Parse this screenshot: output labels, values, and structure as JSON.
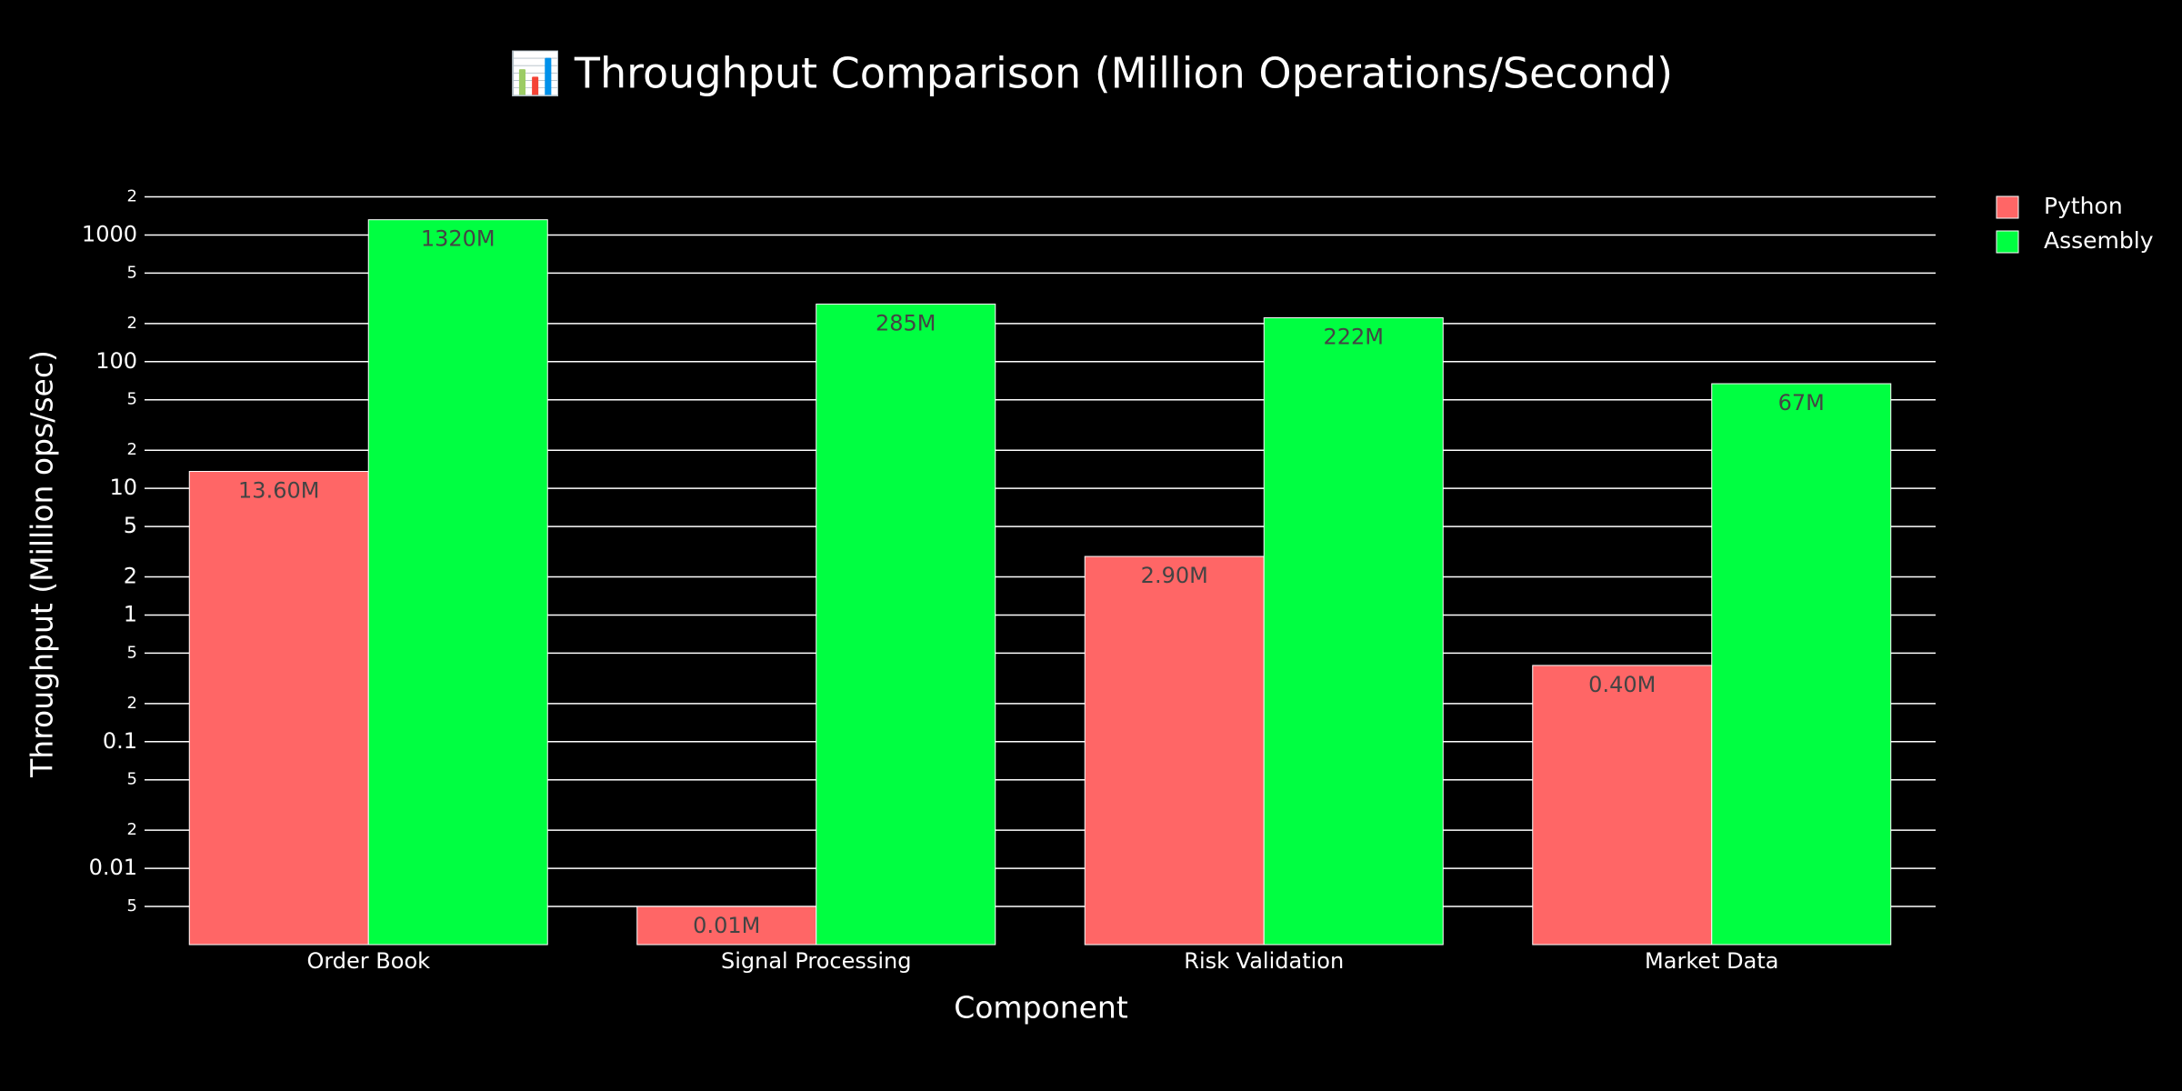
{
  "chart_data": {
    "type": "bar",
    "title": "📊 Throughput Comparison (Million Operations/Second)",
    "x_label": "Component",
    "y_label": "Throughput (Million ops/sec)",
    "categories": [
      "Order Book",
      "Signal Processing",
      "Risk Validation",
      "Market Data"
    ],
    "series": [
      {
        "name": "Python",
        "color": "#ff6666",
        "values": [
          13.6,
          0.005,
          2.9,
          0.4
        ],
        "value_labels": [
          "13.60M",
          "0.01M",
          "2.90M",
          "0.40M"
        ]
      },
      {
        "name": "Assembly",
        "color": "#00ff41",
        "values": [
          1320,
          285,
          222,
          67
        ],
        "value_labels": [
          "1320M",
          "285M",
          "222M",
          "67M"
        ]
      }
    ],
    "log_y": true,
    "ylim": [
      0.0025,
      3000
    ],
    "yticks": [
      {
        "value": 0.005,
        "label": "5"
      },
      0.01,
      {
        "value": 0.02,
        "label": "2"
      },
      {
        "value": 0.05,
        "label": "5"
      },
      0.1,
      {
        "value": 0.2,
        "label": "2"
      },
      {
        "value": 0.5,
        "label": "5"
      },
      1,
      2,
      5,
      10,
      {
        "value": 20,
        "label": "2"
      },
      {
        "value": 50,
        "label": "5"
      },
      100,
      {
        "value": 200,
        "label": "2"
      },
      {
        "value": 500,
        "label": "5"
      },
      1000,
      {
        "value": 2000,
        "label": "2"
      }
    ],
    "grid": true,
    "legend": "top-right"
  }
}
